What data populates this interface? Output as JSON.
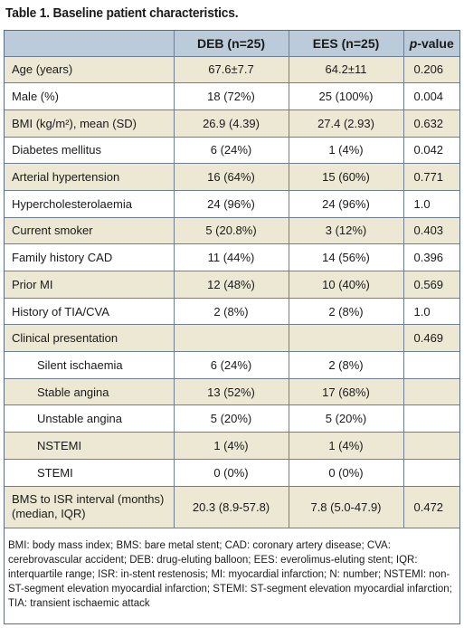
{
  "title": "Table 1. Baseline patient characteristics.",
  "header": {
    "col1": "",
    "col2": "DEB (n=25)",
    "col3": "EES (n=25)",
    "col4_italic": "p",
    "col4_rest": "-value"
  },
  "rows": [
    {
      "label": "Age (years)",
      "deb": "67.6±7.7",
      "ees": "64.2±11",
      "p": "0.206"
    },
    {
      "label": "Male (%)",
      "deb": "18 (72%)",
      "ees": "25 (100%)",
      "p": "0.004"
    },
    {
      "label": "BMI (kg/m²), mean (SD)",
      "deb": "26.9 (4.39)",
      "ees": "27.4 (2.93)",
      "p": "0.632"
    },
    {
      "label": "Diabetes mellitus",
      "deb": "6 (24%)",
      "ees": "1 (4%)",
      "p": "0.042"
    },
    {
      "label": "Arterial hypertension",
      "deb": "16 (64%)",
      "ees": "15 (60%)",
      "p": "0.771"
    },
    {
      "label": "Hypercholesterolaemia",
      "deb": "24 (96%)",
      "ees": "24 (96%)",
      "p": "1.0"
    },
    {
      "label": "Current smoker",
      "deb": "5 (20.8%)",
      "ees": "3 (12%)",
      "p": "0.403"
    },
    {
      "label": "Family history CAD",
      "deb": "11 (44%)",
      "ees": "14 (56%)",
      "p": "0.396"
    },
    {
      "label": "Prior MI",
      "deb": "12 (48%)",
      "ees": "10 (40%)",
      "p": "0.569"
    },
    {
      "label": "History of TIA/CVA",
      "deb": "2 (8%)",
      "ees": "2 (8%)",
      "p": "1.0"
    },
    {
      "label": "Clinical presentation",
      "deb": "",
      "ees": "",
      "p": "0.469"
    },
    {
      "label": "Silent ischaemia",
      "deb": "6 (24%)",
      "ees": "2 (8%)",
      "p": ""
    },
    {
      "label": "Stable angina",
      "deb": "13 (52%)",
      "ees": "17 (68%)",
      "p": ""
    },
    {
      "label": "Unstable angina",
      "deb": "5 (20%)",
      "ees": "5 (20%)",
      "p": ""
    },
    {
      "label": "NSTEMI",
      "deb": "1 (4%)",
      "ees": "1 (4%)",
      "p": ""
    },
    {
      "label": "STEMI",
      "deb": "0 (0%)",
      "ees": "0 (0%)",
      "p": ""
    },
    {
      "label": "BMS to ISR interval (months) (median, IQR)",
      "deb": "20.3 (8.9-57.8)",
      "ees": "7.8 (5.0-47.9)",
      "p": "0.472"
    }
  ],
  "footnote": "BMI: body mass index; BMS: bare metal stent; CAD: coronary artery disease; CVA: cerebrovascular accident; DEB: drug-eluting balloon; EES: everolimus-eluting stent; IQR: interquartile range; ISR: in-stent restenosis; MI: myocardial infarction; N: number; NSTEMI: non-ST-segment elevation myocardial infarction; STEMI: ST-segment elevation myocardial infarction; TIA: transient ischaemic attack",
  "colors": {
    "header_bg": "#bccbda",
    "stripe_bg": "#ece8d4",
    "border": "#6d7f92"
  }
}
